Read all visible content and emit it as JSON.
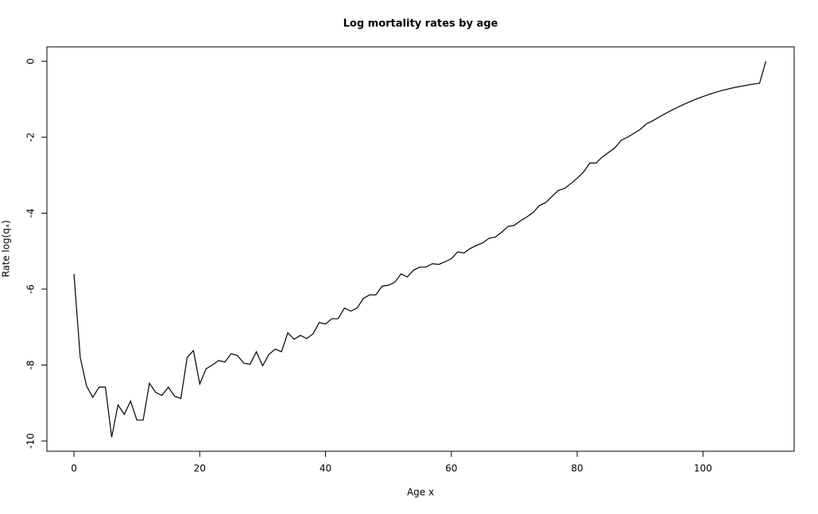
{
  "chart_data": {
    "type": "line",
    "title": "Log mortality rates by age",
    "xlabel": "Age x",
    "ylabel": "Rate log(qₓ)",
    "x": [
      0,
      1,
      2,
      3,
      4,
      5,
      6,
      7,
      8,
      9,
      10,
      11,
      12,
      13,
      14,
      15,
      16,
      17,
      18,
      19,
      20,
      21,
      22,
      23,
      24,
      25,
      26,
      27,
      28,
      29,
      30,
      31,
      32,
      33,
      34,
      35,
      36,
      37,
      38,
      39,
      40,
      41,
      42,
      43,
      44,
      45,
      46,
      47,
      48,
      49,
      50,
      51,
      52,
      53,
      54,
      55,
      56,
      57,
      58,
      59,
      60,
      61,
      62,
      63,
      64,
      65,
      66,
      67,
      68,
      69,
      70,
      71,
      72,
      73,
      74,
      75,
      76,
      77,
      78,
      79,
      80,
      81,
      82,
      83,
      84,
      85,
      86,
      87,
      88,
      89,
      90,
      91,
      92,
      93,
      94,
      95,
      96,
      97,
      98,
      99,
      100,
      101,
      102,
      103,
      104,
      105,
      106,
      107,
      108,
      109,
      110
    ],
    "series": [
      {
        "color": "#000000",
        "values": [
          -5.6,
          -7.8,
          -8.55,
          -8.85,
          -8.58,
          -8.58,
          -9.9,
          -9.05,
          -9.3,
          -8.95,
          -9.45,
          -9.45,
          -8.48,
          -8.72,
          -8.8,
          -8.58,
          -8.82,
          -8.88,
          -7.8,
          -7.62,
          -8.5,
          -8.1,
          -8.0,
          -7.88,
          -7.92,
          -7.7,
          -7.75,
          -7.95,
          -7.98,
          -7.65,
          -8.02,
          -7.72,
          -7.58,
          -7.65,
          -7.15,
          -7.32,
          -7.22,
          -7.3,
          -7.18,
          -6.88,
          -6.92,
          -6.78,
          -6.78,
          -6.5,
          -6.58,
          -6.5,
          -6.25,
          -6.15,
          -6.15,
          -5.92,
          -5.9,
          -5.82,
          -5.6,
          -5.68,
          -5.5,
          -5.42,
          -5.42,
          -5.33,
          -5.35,
          -5.28,
          -5.2,
          -5.02,
          -5.05,
          -4.93,
          -4.85,
          -4.78,
          -4.66,
          -4.63,
          -4.5,
          -4.35,
          -4.32,
          -4.2,
          -4.1,
          -3.98,
          -3.8,
          -3.72,
          -3.56,
          -3.4,
          -3.35,
          -3.22,
          -3.08,
          -2.92,
          -2.68,
          -2.68,
          -2.52,
          -2.4,
          -2.28,
          -2.08,
          -2.0,
          -1.9,
          -1.8,
          -1.65,
          -1.57,
          -1.47,
          -1.38,
          -1.29,
          -1.21,
          -1.13,
          -1.06,
          -0.99,
          -0.93,
          -0.87,
          -0.82,
          -0.77,
          -0.73,
          -0.69,
          -0.66,
          -0.63,
          -0.6,
          -0.58,
          0
        ]
      }
    ],
    "xlim": [
      -4.3,
      114.5
    ],
    "xticks": [
      0,
      20,
      40,
      60,
      80,
      100
    ],
    "ylim": [
      -10.27,
      0.38
    ],
    "yticks": [
      -10,
      -8,
      -6,
      -4,
      -2,
      0
    ]
  }
}
